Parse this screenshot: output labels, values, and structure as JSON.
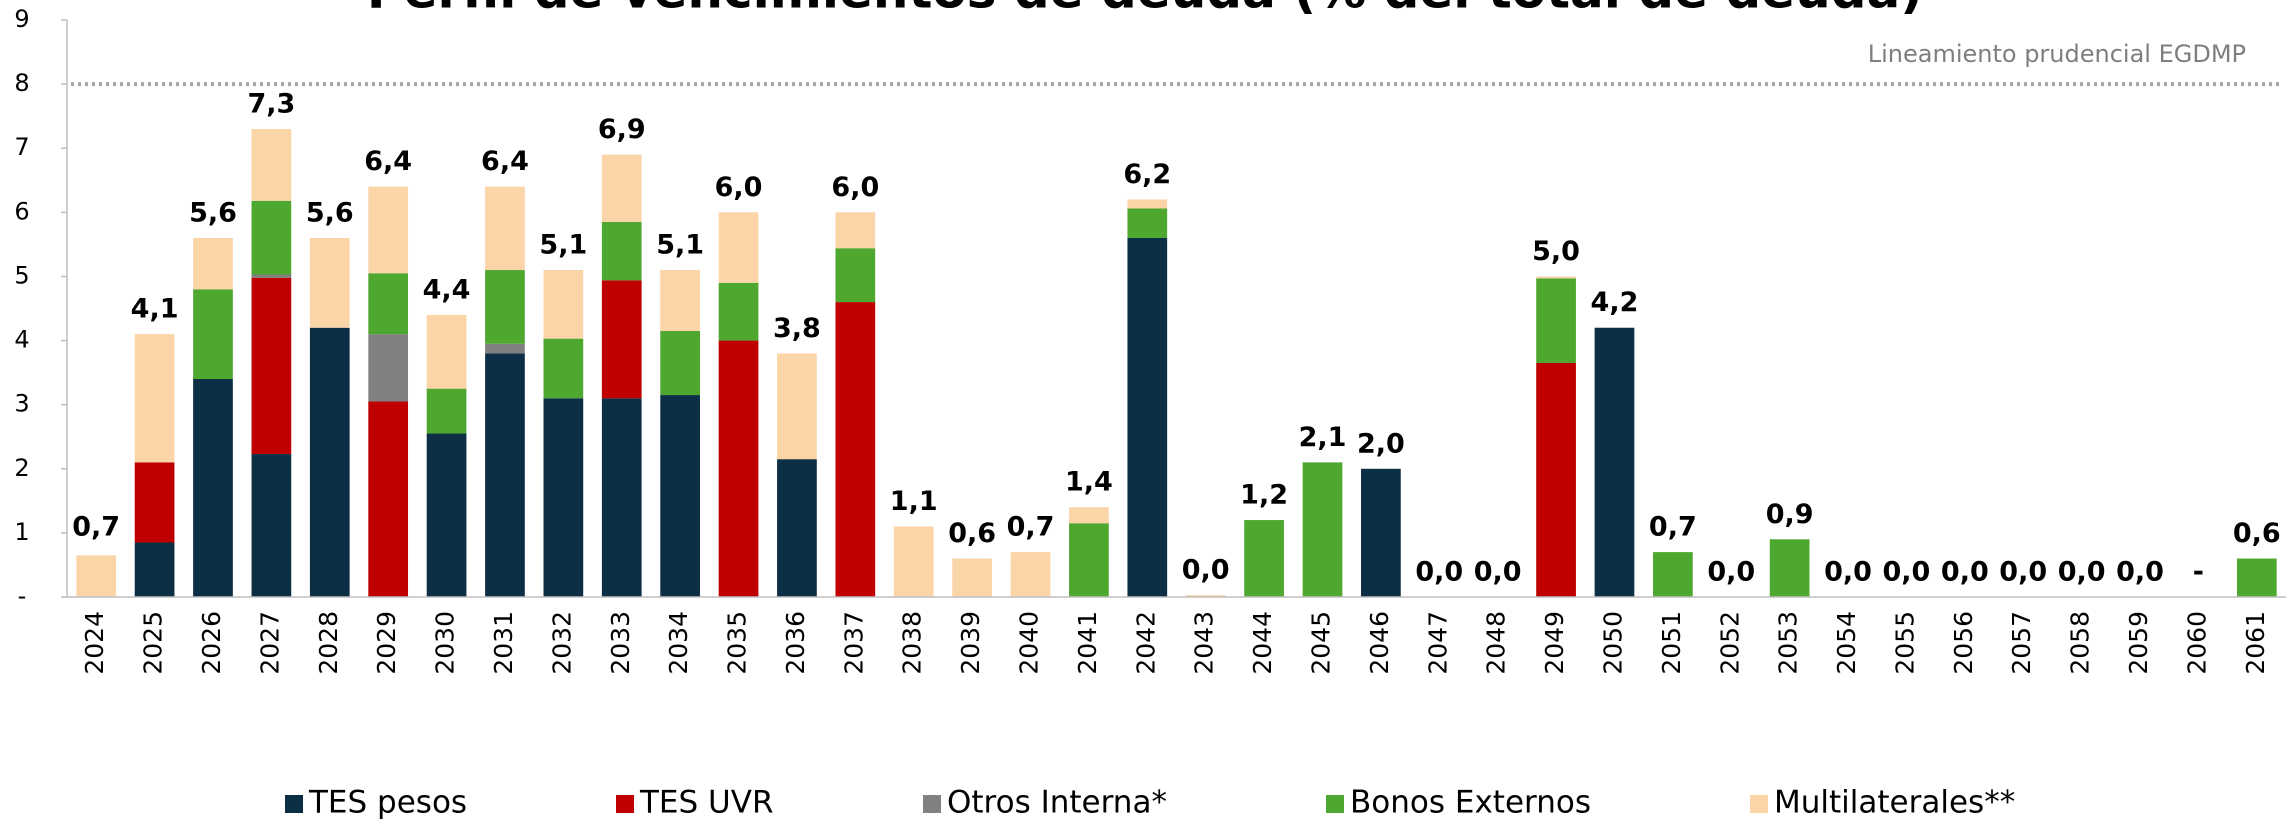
{
  "chart_data": {
    "type": "stacked_bar",
    "title": "Perfil de vencimientos de deuda (% del total de deuda)",
    "categories": [
      "2024",
      "2025",
      "2026",
      "2027",
      "2028",
      "2029",
      "2030",
      "2031",
      "2032",
      "2033",
      "2034",
      "2035",
      "2036",
      "2037",
      "2038",
      "2039",
      "2040",
      "2041",
      "2042",
      "2043",
      "2044",
      "2045",
      "2046",
      "2047",
      "2048",
      "2049",
      "2050",
      "2051",
      "2052",
      "2053",
      "2054",
      "2055",
      "2056",
      "2057",
      "2058",
      "2059",
      "2060",
      "2061"
    ],
    "series": [
      {
        "name": "TES pesos",
        "color": "#0d2f45",
        "values": [
          0,
          0.85,
          3.4,
          2.23,
          4.2,
          0,
          2.55,
          3.8,
          3.1,
          3.1,
          3.15,
          0,
          2.15,
          0,
          0,
          0,
          0,
          0,
          5.6,
          0,
          0,
          0,
          2.0,
          0,
          0,
          0,
          4.2,
          0,
          0,
          0,
          0,
          0,
          0,
          0,
          0,
          0,
          0,
          0
        ]
      },
      {
        "name": "TES UVR",
        "color": "#c00000",
        "values": [
          0,
          1.25,
          0,
          2.75,
          0,
          3.05,
          0,
          0,
          0,
          1.84,
          0,
          4.0,
          0,
          4.6,
          0,
          0,
          0,
          0,
          0,
          0,
          0,
          0,
          0,
          0,
          0,
          3.65,
          0,
          0,
          0,
          0,
          0,
          0,
          0,
          0,
          0,
          0,
          0,
          0
        ]
      },
      {
        "name": "Otros Interna*",
        "color": "#808080",
        "values": [
          0,
          0,
          0,
          0.05,
          0,
          1.05,
          0,
          0.15,
          0,
          0,
          0,
          0,
          0,
          0,
          0,
          0,
          0,
          0,
          0,
          0,
          0,
          0,
          0,
          0,
          0,
          0,
          0,
          0,
          0,
          0,
          0,
          0,
          0,
          0,
          0,
          0,
          0,
          0
        ]
      },
      {
        "name": "Bonos Externos",
        "color": "#4ea72e",
        "values": [
          0,
          0,
          1.4,
          1.15,
          0,
          0.95,
          0.7,
          1.15,
          0.93,
          0.91,
          1.0,
          0.9,
          0,
          0.84,
          0,
          0,
          0,
          1.15,
          0.46,
          0,
          1.2,
          2.1,
          0,
          0,
          0,
          1.32,
          0,
          0.7,
          0,
          0.9,
          0,
          0,
          0,
          0,
          0,
          0,
          0,
          0.6
        ]
      },
      {
        "name": "Multilaterales**",
        "color": "#fbd4a8",
        "values": [
          0.65,
          2.0,
          0.8,
          1.12,
          1.4,
          1.35,
          1.15,
          1.3,
          1.07,
          1.05,
          0.95,
          1.1,
          1.65,
          0.56,
          1.1,
          0.6,
          0.7,
          0.25,
          0.14,
          0.03,
          0,
          0,
          0,
          0,
          0,
          0.03,
          0,
          0,
          0,
          0,
          0,
          0,
          0,
          0,
          0,
          0,
          0,
          0
        ]
      }
    ],
    "totals": [
      0.7,
      4.1,
      5.6,
      7.3,
      5.6,
      6.4,
      4.4,
      6.4,
      5.1,
      6.9,
      5.1,
      6.0,
      3.8,
      6.0,
      1.1,
      0.6,
      0.7,
      1.4,
      6.2,
      0.0,
      1.2,
      2.1,
      2.0,
      0.0,
      0.0,
      5.0,
      4.2,
      0.7,
      0.0,
      0.9,
      0.0,
      0.0,
      0.0,
      0.0,
      0.0,
      0.0,
      0,
      0.6
    ],
    "value_labels": [
      "0,7",
      "4,1",
      "5,6",
      "7,3",
      "5,6",
      "6,4",
      "4,4",
      "6,4",
      "5,1",
      "6,9",
      "5,1",
      "6,0",
      "3,8",
      "6,0",
      "1,1",
      "0,6",
      "0,7",
      "1,4",
      "6,2",
      "0,0",
      "1,2",
      "2,1",
      "2,0",
      "0,0",
      "0,0",
      "5,0",
      "4,2",
      "0,7",
      "0,0",
      "0,9",
      "0,0",
      "0,0",
      "0,0",
      "0,0",
      "0,0",
      "0,0",
      "-",
      "0,6"
    ],
    "reference_line": {
      "value": 8,
      "label": "Lineamiento prudencial EGDMP",
      "color": "#a6a6a6"
    },
    "ylim": [
      0,
      9
    ],
    "yticks": [
      {
        "value": 0,
        "label": "-"
      },
      1,
      2,
      3,
      4,
      5,
      6,
      7,
      8,
      9
    ],
    "legend": "bottom"
  }
}
